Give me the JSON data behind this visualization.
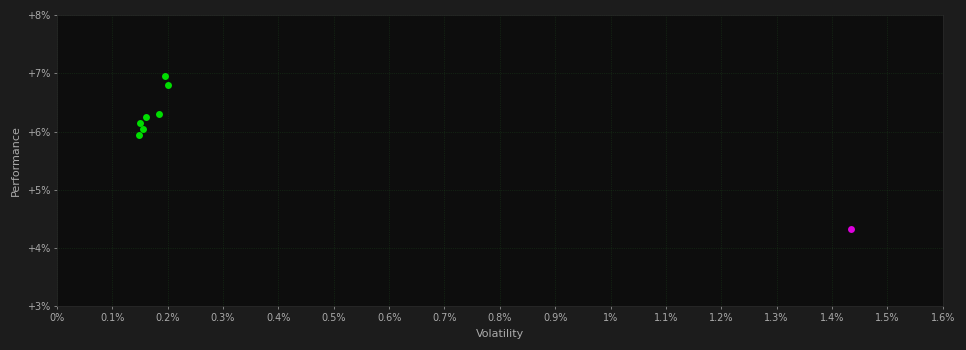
{
  "background_color": "#1c1c1c",
  "plot_bg_color": "#0d0d0d",
  "xlabel": "Volatility",
  "ylabel": "Performance",
  "xlim": [
    0.0,
    0.016
  ],
  "ylim": [
    0.03,
    0.08
  ],
  "xtick_labels": [
    "0%",
    "0.1%",
    "0.2%",
    "0.3%",
    "0.4%",
    "0.5%",
    "0.6%",
    "0.7%",
    "0.8%",
    "0.9%",
    "1%",
    "1.1%",
    "1.2%",
    "1.3%",
    "1.4%",
    "1.5%",
    "1.6%"
  ],
  "xtick_values": [
    0.0,
    0.001,
    0.002,
    0.003,
    0.004,
    0.005,
    0.006,
    0.007,
    0.008,
    0.009,
    0.01,
    0.011,
    0.012,
    0.013,
    0.014,
    0.015,
    0.016
  ],
  "ytick_labels": [
    "+3%",
    "+4%",
    "+5%",
    "+6%",
    "+7%",
    "+8%"
  ],
  "ytick_values": [
    0.03,
    0.04,
    0.05,
    0.06,
    0.07,
    0.08
  ],
  "green_points": [
    [
      0.00195,
      0.0695
    ],
    [
      0.002,
      0.068
    ],
    [
      0.0015,
      0.0615
    ],
    [
      0.0016,
      0.0625
    ],
    [
      0.00155,
      0.0605
    ],
    [
      0.00148,
      0.0595
    ],
    [
      0.00185,
      0.063
    ]
  ],
  "magenta_points": [
    [
      0.01435,
      0.0432
    ]
  ],
  "green_color": "#00dd00",
  "magenta_color": "#dd00dd",
  "marker_size": 5,
  "grid_color": "#1a3a1a",
  "spine_color": "#2a2a2a",
  "tick_label_color": "#aaaaaa",
  "axis_label_color": "#aaaaaa",
  "tick_label_fontsize": 7,
  "axis_label_fontsize": 8
}
